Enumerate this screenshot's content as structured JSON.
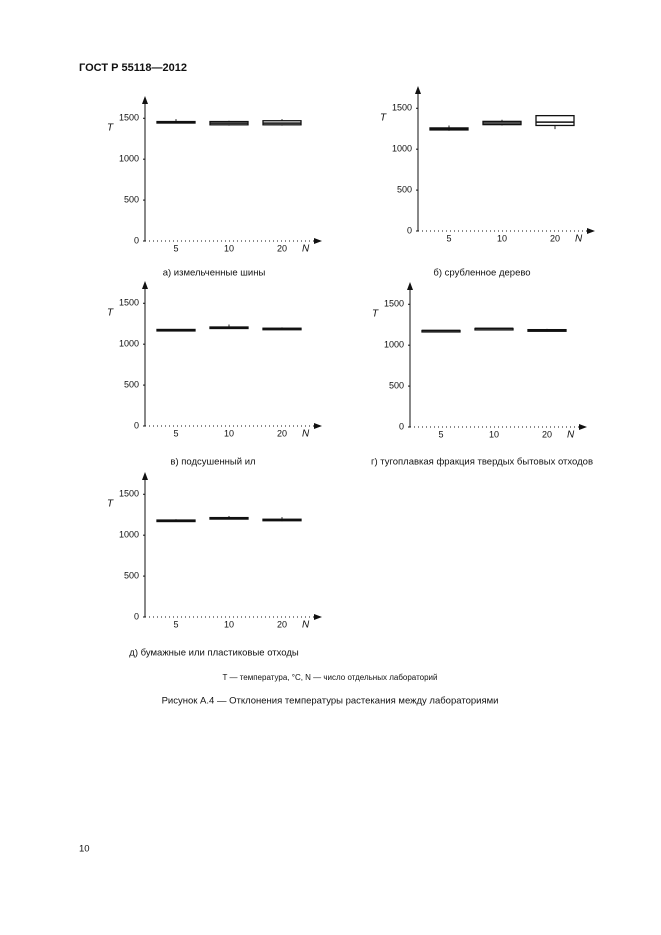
{
  "header": "ГОСТ Р 55118—2012",
  "chart_data": [
    {
      "type": "box",
      "caption": "а) измельченные шины",
      "ylabel": "T",
      "xlabel": "N",
      "categories": [
        "5",
        "10",
        "20"
      ],
      "ylim": [
        0,
        1650
      ],
      "yticks": [
        0,
        500,
        1000,
        1500
      ],
      "boxes": [
        {
          "min": 1440,
          "q1": 1445,
          "median": 1455,
          "q3": 1460,
          "max": 1490
        },
        {
          "min": 1410,
          "q1": 1420,
          "median": 1440,
          "q3": 1460,
          "max": 1470
        },
        {
          "min": 1410,
          "q1": 1420,
          "median": 1440,
          "q3": 1470,
          "max": 1490
        }
      ]
    },
    {
      "type": "box",
      "caption": "б) срубленное дерево",
      "ylabel": "T",
      "xlabel": "N",
      "categories": [
        "5",
        "10",
        "20"
      ],
      "ylim": [
        0,
        1650
      ],
      "yticks": [
        0,
        500,
        1000,
        1500
      ],
      "boxes": [
        {
          "min": 1225,
          "q1": 1235,
          "median": 1245,
          "q3": 1260,
          "max": 1290
        },
        {
          "min": 1290,
          "q1": 1300,
          "median": 1320,
          "q3": 1340,
          "max": 1360
        },
        {
          "min": 1245,
          "q1": 1290,
          "median": 1330,
          "q3": 1410,
          "max": 1410
        }
      ]
    },
    {
      "type": "box",
      "caption": "в) подсушенный ил",
      "ylabel": "T",
      "xlabel": "N",
      "categories": [
        "5",
        "10",
        "20"
      ],
      "ylim": [
        0,
        1650
      ],
      "yticks": [
        0,
        500,
        1000,
        1500
      ],
      "boxes": [
        {
          "min": 1165,
          "q1": 1170,
          "median": 1175,
          "q3": 1180,
          "max": 1185
        },
        {
          "min": 1190,
          "q1": 1200,
          "median": 1205,
          "q3": 1210,
          "max": 1240
        },
        {
          "min": 1180,
          "q1": 1185,
          "median": 1190,
          "q3": 1195,
          "max": 1205
        }
      ]
    },
    {
      "type": "box",
      "caption": "г) тугоплавкая фракция твердых бытовых отходов",
      "ylabel": "T",
      "xlabel": "N",
      "categories": [
        "5",
        "10",
        "20"
      ],
      "ylim": [
        0,
        1650
      ],
      "yticks": [
        0,
        500,
        1000,
        1500
      ],
      "boxes": [
        {
          "min": 1175,
          "q1": 1175,
          "median": 1180,
          "q3": 1180,
          "max": 1185
        },
        {
          "min": 1200,
          "q1": 1200,
          "median": 1205,
          "q3": 1205,
          "max": 1210
        },
        {
          "min": 1165,
          "q1": 1170,
          "median": 1180,
          "q3": 1190,
          "max": 1200
        }
      ]
    },
    {
      "type": "box",
      "caption": "д) бумажные или пластиковые отходы",
      "ylabel": "T",
      "xlabel": "N",
      "categories": [
        "5",
        "10",
        "20"
      ],
      "ylim": [
        0,
        1650
      ],
      "yticks": [
        0,
        500,
        1000,
        1500
      ],
      "boxes": [
        {
          "min": 1170,
          "q1": 1175,
          "median": 1180,
          "q3": 1185,
          "max": 1195
        },
        {
          "min": 1200,
          "q1": 1205,
          "median": 1210,
          "q3": 1215,
          "max": 1235
        },
        {
          "min": 1170,
          "q1": 1180,
          "median": 1185,
          "q3": 1195,
          "max": 1220
        }
      ]
    }
  ],
  "note": "T — температура, °C, N — число отдельных лабораторий",
  "figure_caption": "Рисунок А.4 — Отклонения температуры растекания между лабораториями",
  "page_number": "10"
}
